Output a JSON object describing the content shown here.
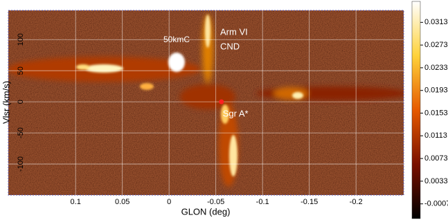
{
  "chart_data": {
    "type": "lv-map",
    "x_label": "GLON (deg)",
    "y_label": "Vlsr (km/s)",
    "xlim": [
      0.172,
      -0.251
    ],
    "xticks": [
      0.1,
      0.05,
      0,
      -0.05,
      -0.1,
      -0.15,
      -0.2
    ],
    "ylim": [
      -150,
      147
    ],
    "yticks": [
      100,
      50,
      0,
      -50,
      -100
    ],
    "grid": true,
    "colorbar": {
      "lim": [
        -0.0033,
        0.035
      ],
      "ticks": [
        0.0313,
        0.0273,
        0.0233,
        0.0193,
        0.0153,
        0.0113,
        0.0073,
        0.0033,
        -0.0007
      ]
    },
    "annotations": [
      "Arm VI",
      "CND",
      "50kmC"
    ],
    "marker": {
      "label": "Sgr A*",
      "x": -0.056,
      "y": 0,
      "color": "#ff2020"
    }
  }
}
